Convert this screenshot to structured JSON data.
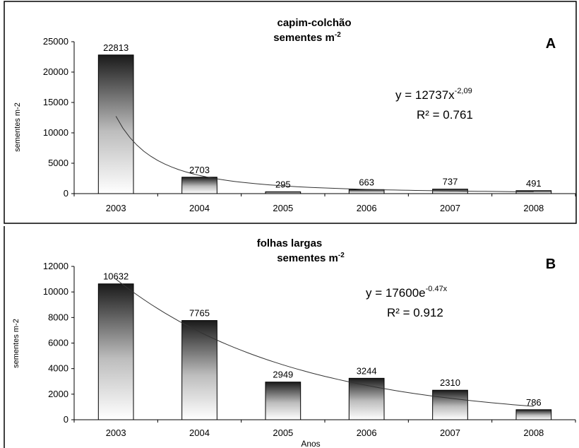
{
  "chart_data": [
    {
      "type": "bar",
      "panel_letter": "A",
      "title_line1": "capim-colchão",
      "title_line2": "sementes m",
      "title_sup": "-2",
      "ylabel": "sementes m-2",
      "xlabel": "",
      "categories": [
        "2003",
        "2004",
        "2005",
        "2006",
        "2007",
        "2008"
      ],
      "values": [
        22813,
        2703,
        295,
        663,
        737,
        491
      ],
      "data_labels": [
        "22813",
        "2703",
        "295",
        "663",
        "737",
        "491"
      ],
      "ylim": [
        0,
        25000
      ],
      "yticks": [
        "0",
        "5000",
        "10000",
        "15000",
        "20000",
        "25000"
      ],
      "grid": false,
      "trendline": {
        "type": "power",
        "a": 12737,
        "b": -2.09
      },
      "equation_text": "y = 12737x",
      "equation_sup": "-2,09",
      "r2_text": "R² = 0.761"
    },
    {
      "type": "bar",
      "panel_letter": "B",
      "title_line1": "folhas largas",
      "title_line2": "sementes m",
      "title_sup": "-2",
      "ylabel": "sementes m-2",
      "xlabel": "Anos",
      "categories": [
        "2003",
        "2004",
        "2005",
        "2006",
        "2007",
        "2008"
      ],
      "values": [
        10632,
        7765,
        2949,
        3244,
        2310,
        786
      ],
      "data_labels": [
        "10632",
        "7765",
        "2949",
        "3244",
        "2310",
        "786"
      ],
      "ylim": [
        0,
        12000
      ],
      "yticks": [
        "0",
        "2000",
        "4000",
        "6000",
        "8000",
        "10000",
        "12000"
      ],
      "grid": false,
      "trendline": {
        "type": "exponential",
        "a": 17600,
        "b": -0.47
      },
      "equation_text": "y = 17600e",
      "equation_sup": "-0.47x",
      "r2_text": "R² = 0.912"
    }
  ]
}
